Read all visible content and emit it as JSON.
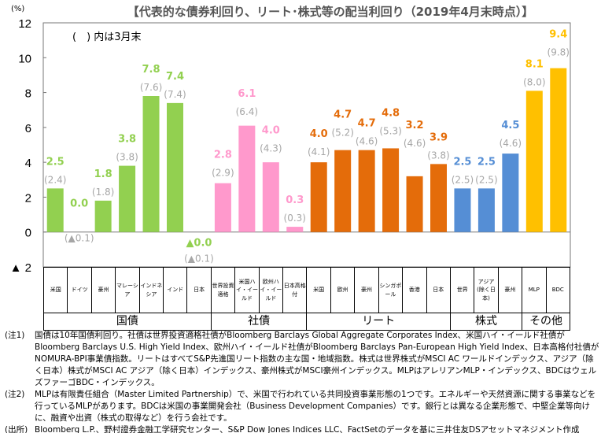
{
  "title": "【代表的な債券利回り、リート･株式等の配当利回り（2019年4月末時点）】",
  "unit": "(%)",
  "legend_note": "(　) 内は3月末",
  "colors": {
    "govt": "#92d050",
    "corp": "#ff99cc",
    "reit": "#e46c0a",
    "equity": "#558ed5",
    "other": "#ffc000",
    "prev": "#a6a6a6"
  },
  "chart_data": {
    "type": "bar",
    "ylim": [
      -2,
      12
    ],
    "yticks": [
      {
        "v": 12,
        "label": "12"
      },
      {
        "v": 10,
        "label": "10"
      },
      {
        "v": 8,
        "label": "8"
      },
      {
        "v": 6,
        "label": "6"
      },
      {
        "v": 4,
        "label": "4"
      },
      {
        "v": 2,
        "label": "2"
      },
      {
        "v": 0,
        "label": "0"
      },
      {
        "v": -2,
        "label": "▲ 2"
      }
    ],
    "categories": [
      "米国",
      "ドイツ",
      "豪州",
      "マレーシア",
      "インドネシア",
      "インド",
      "日本",
      "世界投資適格",
      "米国ハイ・イールド",
      "欧州ハイ・イールド",
      "日本高格付",
      "米国",
      "欧州",
      "豪州",
      "シンガポール",
      "香港",
      "日本",
      "世界",
      "アジア(除く日本)",
      "豪州",
      "MLP",
      "BDC"
    ],
    "groups": [
      {
        "label": "国債",
        "span": 7,
        "color": "govt"
      },
      {
        "label": "社債",
        "span": 4,
        "color": "corp"
      },
      {
        "label": "リート",
        "span": 6,
        "color": "reit"
      },
      {
        "label": "株式",
        "span": 3,
        "color": "equity"
      },
      {
        "label": "その他",
        "span": 2,
        "color": "other"
      }
    ],
    "values": [
      2.5,
      0.0,
      1.8,
      3.8,
      7.8,
      7.4,
      -0.0,
      2.8,
      6.1,
      4.0,
      0.3,
      4.0,
      4.7,
      4.7,
      4.8,
      3.2,
      3.9,
      2.5,
      2.5,
      4.5,
      8.1,
      9.4
    ],
    "value_labels": [
      "2.5",
      "0.0",
      "1.8",
      "3.8",
      "7.8",
      "7.4",
      "▲0.0",
      "2.8",
      "6.1",
      "4.0",
      "0.3",
      "4.0",
      "4.7",
      "4.7",
      "4.8",
      "3.2",
      "3.9",
      "2.5",
      "2.5",
      "4.5",
      "8.1",
      "9.4"
    ],
    "prev_values": [
      2.4,
      -0.1,
      1.8,
      3.8,
      7.6,
      7.4,
      -0.1,
      2.9,
      6.4,
      4.3,
      0.3,
      4.1,
      5.2,
      4.6,
      5.3,
      4.6,
      3.8,
      2.5,
      2.5,
      4.6,
      8.0,
      9.8
    ],
    "prev_labels": [
      "(2.4)",
      "(▲0.1)",
      "(1.8)",
      "(3.8)",
      "(7.6)",
      "(7.4)",
      "(▲0.1)",
      "(2.9)",
      "(6.4)",
      "(4.3)",
      "(0.3)",
      "(4.1)",
      "(5.2)",
      "(4.6)",
      "(5.3)",
      "(4.6)",
      "(3.8)",
      "(2.5)",
      "(2.5)",
      "(4.6)",
      "(8.0)",
      "(9.8)"
    ]
  },
  "notes": [
    {
      "tag": "(注1)",
      "text": "国債は10年国債利回り。社債は世界投資適格社債がBloomberg Barclays Global Aggregate Corporates Index、米国ハイ・イールド社債がBloomberg Barclays U.S. High Yield Index、欧州ハイ・イールド社債がBloomberg Barclays Pan-European High Yield Index、日本高格付社債がNOMURA-BPI事業債指数。リートはすべてS&P先進国リート指数の主な国・地域指数。株式は世界株式がMSCI AC ワールドインデックス、アジア（除く日本）株式がMSCI AC アジア（除く日本）インデックス、豪州株式がMSCI豪州インデックス。MLPはアレリアンMLP・インデックス、BDCはウェルズファーゴBDC・インデックス。"
    },
    {
      "tag": "(注2)",
      "text": "MLPは有限責任組合（Master Limited Partnership）で、米国で行われている共同投資事業形態の1つです。エネルギーや天然資源に関する事業などを行っているMLPがあります。BDCは米国の事業開発会社（Business Development Companies）です。銀行とは異なる企業形態で、中堅企業等向けに、融資や出資（株式の取得など）を行う会社です。"
    },
    {
      "tag": "(出所)",
      "text": "Bloomberg L.P.、野村證券金融工学研究センター、S&P Dow Jones Indices LLC、FactSetのデータを基に三井住友DSアセットマネジメント作成"
    }
  ]
}
